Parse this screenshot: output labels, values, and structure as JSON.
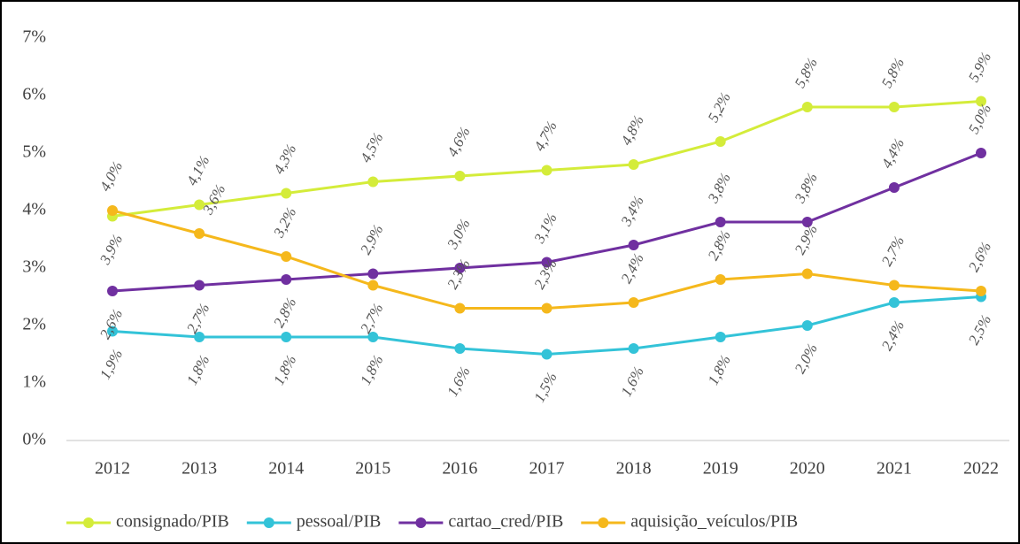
{
  "chart_data": {
    "type": "line",
    "categories": [
      "2012",
      "2013",
      "2014",
      "2015",
      "2016",
      "2017",
      "2018",
      "2019",
      "2020",
      "2021",
      "2022"
    ],
    "series": [
      {
        "name": "consignado/PIB",
        "color": "#d4ec3a",
        "values": [
          3.9,
          4.1,
          4.3,
          4.5,
          4.6,
          4.7,
          4.8,
          5.2,
          5.8,
          5.8,
          5.9
        ],
        "value_labels": [
          "3,9%",
          "4,1%",
          "4,3%",
          "4,5%",
          "4,6%",
          "4,7%",
          "4,8%",
          "5,2%",
          "5,8%",
          "5,8%",
          "5,9%"
        ]
      },
      {
        "name": "pessoal/PIB",
        "color": "#33c3d8",
        "values": [
          1.9,
          1.8,
          1.8,
          1.8,
          1.6,
          1.5,
          1.6,
          1.8,
          2.0,
          2.4,
          2.5
        ],
        "value_labels": [
          "1,9%",
          "1,8%",
          "1,8%",
          "1,8%",
          "1,6%",
          "1,5%",
          "1,6%",
          "1,8%",
          "2,0%",
          "2,4%",
          "2,5%"
        ]
      },
      {
        "name": "cartao_cred/PIB",
        "color": "#7030a0",
        "values": [
          2.6,
          2.7,
          2.8,
          2.9,
          3.0,
          3.1,
          3.4,
          3.8,
          3.8,
          4.4,
          5.0
        ],
        "value_labels": [
          "2,6%",
          "2,7%",
          "2,8%",
          "2,9%",
          "3,0%",
          "3,1%",
          "3,4%",
          "3,8%",
          "3,8%",
          "4,4%",
          "5,0%"
        ]
      },
      {
        "name": "aquisição_veículos/PIB",
        "color": "#f5b81c",
        "values": [
          4.0,
          3.6,
          3.2,
          2.7,
          2.3,
          2.3,
          2.4,
          2.8,
          2.9,
          2.7,
          2.6
        ],
        "value_labels": [
          "4,0%",
          "3,6%",
          "3,2%",
          "2,7%",
          "2,3%",
          "2,3%",
          "2,4%",
          "2,8%",
          "2,9%",
          "2,7%",
          "2,6%"
        ]
      }
    ],
    "ylim": [
      0,
      7
    ],
    "yticks": [
      {
        "value": 0,
        "label": "0%"
      },
      {
        "value": 1,
        "label": "1%"
      },
      {
        "value": 2,
        "label": "2%"
      },
      {
        "value": 3,
        "label": "3%"
      },
      {
        "value": 4,
        "label": "4%"
      },
      {
        "value": 5,
        "label": "5%"
      },
      {
        "value": 6,
        "label": "6%"
      },
      {
        "value": 7,
        "label": "7%"
      }
    ],
    "legend": "bottom"
  }
}
